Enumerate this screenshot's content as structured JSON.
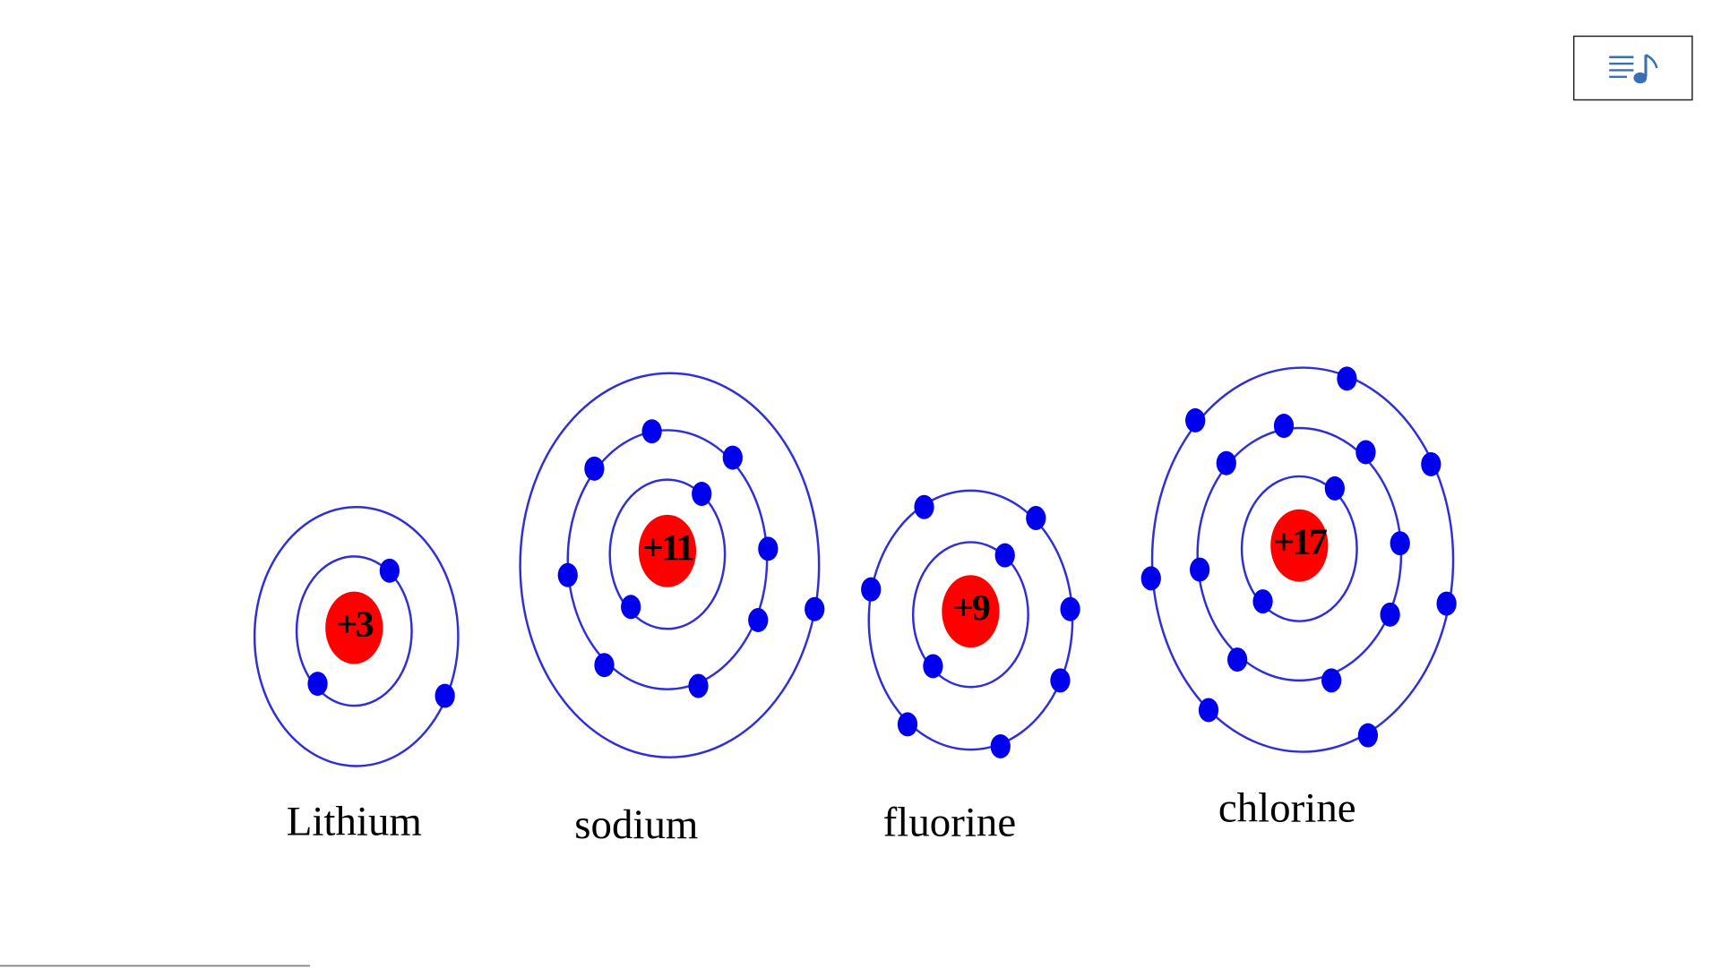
{
  "atoms": [
    {
      "charge": "+3",
      "name": "Lithium"
    },
    {
      "charge": "+11",
      "name": "sodium"
    },
    {
      "charge": "+9",
      "name": "fluorine"
    },
    {
      "charge": "+17",
      "name": "chlorine"
    }
  ]
}
